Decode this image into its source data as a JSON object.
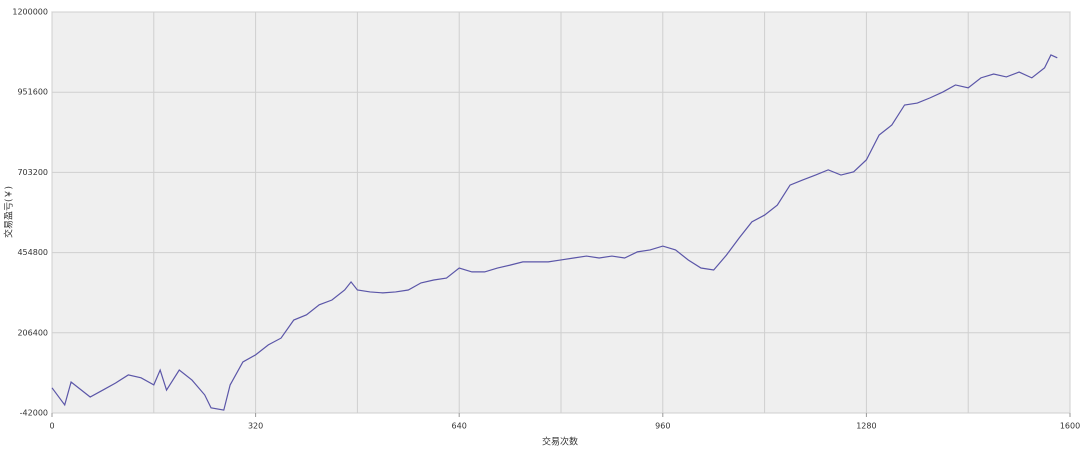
{
  "chart_data": {
    "type": "line",
    "xlabel": "交易次数",
    "ylabel": "交易盈亏(￥)",
    "xlim": [
      0,
      1600
    ],
    "xticks": [
      0,
      320,
      640,
      960,
      1280,
      1600
    ],
    "xminorticks": [
      160,
      480,
      800,
      1120,
      1440
    ],
    "ylim": [
      -42000,
      1200000
    ],
    "yticks": [
      -42000,
      206400,
      454800,
      703200,
      951600,
      1200000
    ],
    "grid": true,
    "series": [
      {
        "color": "#5b56a8",
        "x": [
          0,
          20,
          30,
          60,
          80,
          100,
          120,
          140,
          160,
          170,
          180,
          200,
          220,
          240,
          250,
          270,
          280,
          300,
          320,
          340,
          360,
          380,
          400,
          420,
          440,
          460,
          470,
          480,
          500,
          520,
          540,
          560,
          580,
          600,
          620,
          640,
          660,
          680,
          700,
          720,
          740,
          760,
          780,
          800,
          820,
          840,
          860,
          880,
          900,
          920,
          940,
          960,
          980,
          1000,
          1020,
          1040,
          1060,
          1080,
          1100,
          1120,
          1140,
          1160,
          1180,
          1200,
          1220,
          1240,
          1260,
          1280,
          1300,
          1320,
          1340,
          1360,
          1380,
          1400,
          1420,
          1440,
          1460,
          1480,
          1500,
          1520,
          1540,
          1560,
          1570,
          1580
        ],
        "values": [
          36000,
          -17000,
          54000,
          7600,
          29000,
          51000,
          76000,
          67000,
          45000,
          91000,
          29000,
          91000,
          60000,
          14000,
          -26000,
          -33000,
          45000,
          116000,
          138000,
          169000,
          190000,
          246000,
          262000,
          293000,
          308000,
          339000,
          364000,
          339000,
          333000,
          330000,
          333000,
          339000,
          361000,
          370000,
          376000,
          407000,
          395000,
          395000,
          407000,
          416000,
          426000,
          426000,
          426000,
          432000,
          438000,
          444000,
          438000,
          444000,
          438000,
          457000,
          463000,
          475000,
          463000,
          432000,
          407000,
          401000,
          447000,
          500000,
          550000,
          571000,
          602000,
          664000,
          680000,
          695000,
          711000,
          695000,
          705000,
          742000,
          819000,
          850000,
          912000,
          918000,
          934000,
          952000,
          974000,
          965000,
          996000,
          1008000,
          999000,
          1014000,
          996000,
          1027000,
          1067000,
          1058000
        ]
      }
    ]
  }
}
